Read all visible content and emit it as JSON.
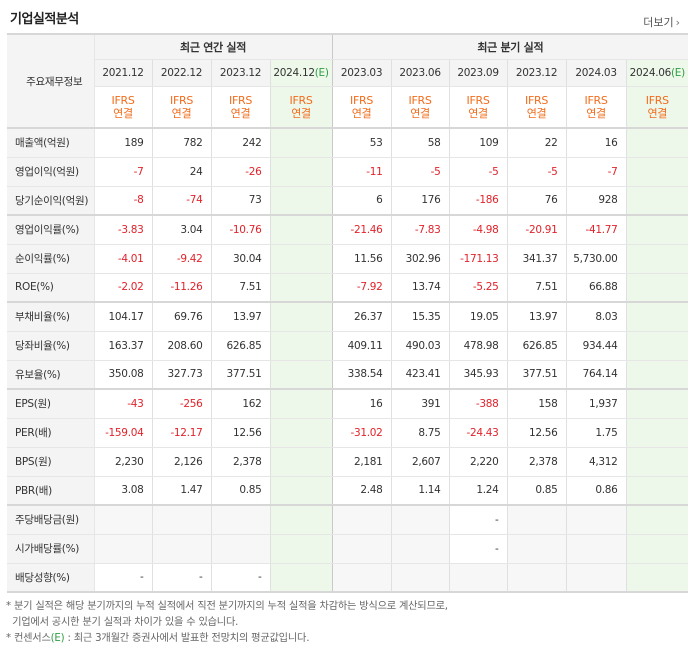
{
  "title": "기업실적분석",
  "more_label": "더보기",
  "header": {
    "row_label": "주요재무정보",
    "annual_group": "최근 연간 실적",
    "quarter_group": "최근 분기 실적",
    "annual_periods": [
      "2021.12",
      "2022.12",
      "2023.12",
      "2024.12"
    ],
    "quarter_periods": [
      "2023.03",
      "2023.06",
      "2023.09",
      "2023.12",
      "2024.03",
      "2024.06"
    ],
    "estimate_mark": "(E)",
    "basis_line1": "IFRS",
    "basis_line2": "연결"
  },
  "rows": [
    {
      "label": "매출액(억원)",
      "values": [
        "189",
        "782",
        "242",
        "",
        "53",
        "58",
        "109",
        "22",
        "16",
        ""
      ]
    },
    {
      "label": "영업이익(억원)",
      "values": [
        "-7",
        "24",
        "-26",
        "",
        "-11",
        "-5",
        "-5",
        "-5",
        "-7",
        ""
      ]
    },
    {
      "label": "당기순이익(억원)",
      "values": [
        "-8",
        "-74",
        "73",
        "",
        "6",
        "176",
        "-186",
        "76",
        "928",
        ""
      ]
    },
    {
      "label": "영업이익률(%)",
      "values": [
        "-3.83",
        "3.04",
        "-10.76",
        "",
        "-21.46",
        "-7.83",
        "-4.98",
        "-20.91",
        "-41.77",
        ""
      ]
    },
    {
      "label": "순이익률(%)",
      "values": [
        "-4.01",
        "-9.42",
        "30.04",
        "",
        "11.56",
        "302.96",
        "-171.13",
        "341.37",
        "5,730.00",
        ""
      ]
    },
    {
      "label": "ROE(%)",
      "values": [
        "-2.02",
        "-11.26",
        "7.51",
        "",
        "-7.92",
        "13.74",
        "-5.25",
        "7.51",
        "66.88",
        ""
      ]
    },
    {
      "label": "부채비율(%)",
      "values": [
        "104.17",
        "69.76",
        "13.97",
        "",
        "26.37",
        "15.35",
        "19.05",
        "13.97",
        "8.03",
        ""
      ]
    },
    {
      "label": "당좌비율(%)",
      "values": [
        "163.37",
        "208.60",
        "626.85",
        "",
        "409.11",
        "490.03",
        "478.98",
        "626.85",
        "934.44",
        ""
      ]
    },
    {
      "label": "유보율(%)",
      "values": [
        "350.08",
        "327.73",
        "377.51",
        "",
        "338.54",
        "423.41",
        "345.93",
        "377.51",
        "764.14",
        ""
      ]
    },
    {
      "label": "EPS(원)",
      "values": [
        "-43",
        "-256",
        "162",
        "",
        "16",
        "391",
        "-388",
        "158",
        "1,937",
        ""
      ]
    },
    {
      "label": "PER(배)",
      "values": [
        "-159.04",
        "-12.17",
        "12.56",
        "",
        "-31.02",
        "8.75",
        "-24.43",
        "12.56",
        "1.75",
        ""
      ]
    },
    {
      "label": "BPS(원)",
      "values": [
        "2,230",
        "2,126",
        "2,378",
        "",
        "2,181",
        "2,607",
        "2,220",
        "2,378",
        "4,312",
        ""
      ]
    },
    {
      "label": "PBR(배)",
      "values": [
        "3.08",
        "1.47",
        "0.85",
        "",
        "2.48",
        "1.14",
        "1.24",
        "0.85",
        "0.86",
        ""
      ]
    },
    {
      "label": "주당배당금(원)",
      "values": [
        "",
        "",
        "",
        "",
        "",
        "",
        "-",
        "",
        "",
        ""
      ]
    },
    {
      "label": "시가배당률(%)",
      "values": [
        "",
        "",
        "",
        "",
        "",
        "",
        "-",
        "",
        "",
        ""
      ]
    },
    {
      "label": "배당성향(%)",
      "values": [
        "-",
        "-",
        "-",
        "",
        "",
        "",
        "",
        "",
        "",
        ""
      ]
    }
  ],
  "notes": [
    "분기 실적은 해당 분기까지의 누적 실적에서 직전 분기까지의 누적 실적을 차감하는 방식으로 계산되므로,",
    "기업에서 공시한 분기 실적과 차이가 있을 수 있습니다.",
    "컨센서스",
    "(E)",
    ": 최근 3개월간 증권사에서 발표한 전망치의 평균값입니다."
  ],
  "colors": {
    "negative": "#e2222a",
    "ifrs": "#f26c1b",
    "estimate_bg": "#eef8ea",
    "estimate_text": "#2e9e46"
  }
}
